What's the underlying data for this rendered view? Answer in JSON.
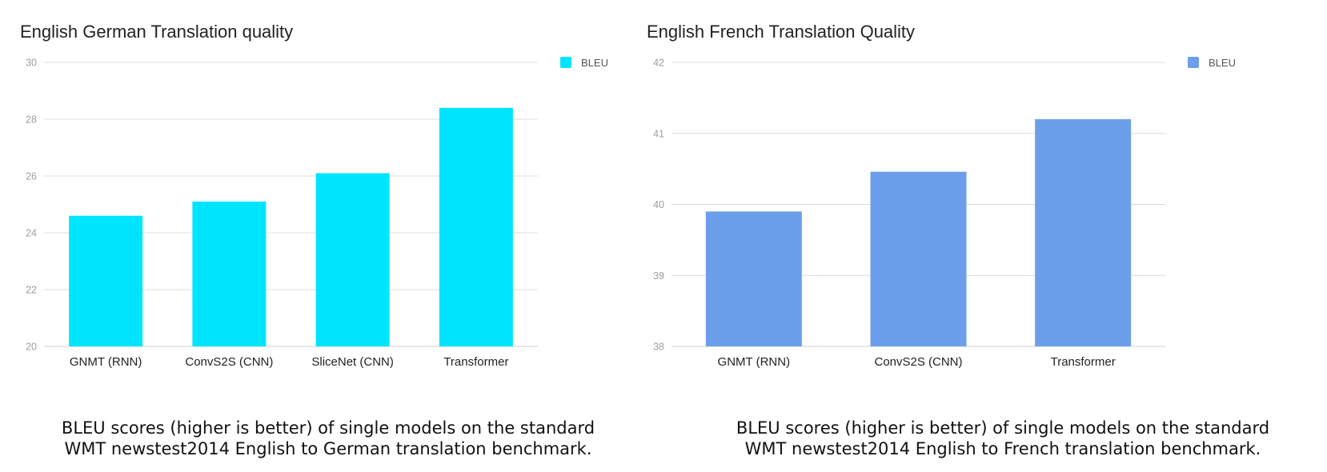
{
  "chart_data": [
    {
      "type": "bar",
      "title": "English German Translation quality",
      "categories": [
        "GNMT (RNN)",
        "ConvS2S (CNN)",
        "SliceNet (CNN)",
        "Transformer"
      ],
      "series": [
        {
          "name": "BLEU",
          "values": [
            24.6,
            25.1,
            26.1,
            28.4
          ]
        }
      ],
      "ylim": [
        20,
        30
      ],
      "yticks": [
        "20",
        "22",
        "24",
        "26",
        "28",
        "30"
      ],
      "grid": true,
      "legend": "top-right",
      "color": "#00e5ff",
      "caption_lines": [
        "BLEU scores (higher is better) of single models on the standard",
        "WMT newstest2014 English to German translation benchmark."
      ]
    },
    {
      "type": "bar",
      "title": "English French Translation Quality",
      "categories": [
        "GNMT (RNN)",
        "ConvS2S (CNN)",
        "Transformer"
      ],
      "series": [
        {
          "name": "BLEU",
          "values": [
            39.9,
            40.46,
            41.2
          ]
        }
      ],
      "ylim": [
        38,
        42
      ],
      "yticks": [
        "38",
        "39",
        "40",
        "41",
        "42"
      ],
      "grid": true,
      "legend": "top-right",
      "color": "#6d9eeb",
      "caption_lines": [
        "BLEU scores (higher is better) of single models on the standard",
        "WMT newstest2014 English to French translation benchmark."
      ]
    }
  ]
}
